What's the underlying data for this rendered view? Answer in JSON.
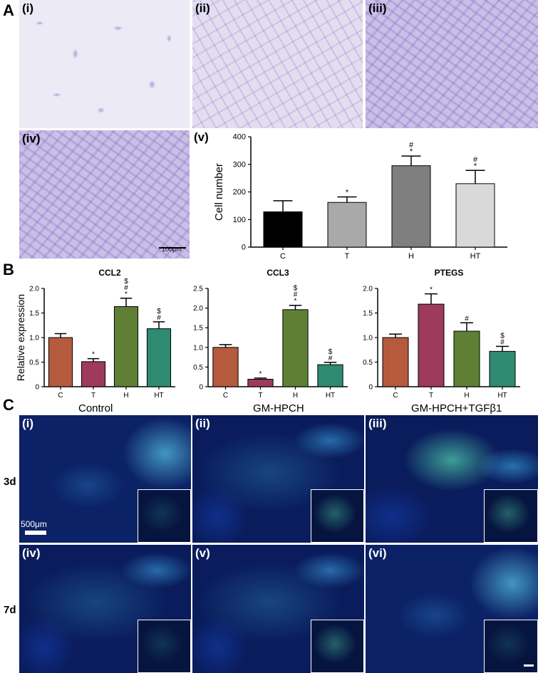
{
  "panel_A": {
    "letter": "A",
    "labels": [
      "(i)",
      "(ii)",
      "(iii)",
      "(iv)",
      "(v)"
    ],
    "scale_bar": "100μm"
  },
  "panel_B": {
    "letter": "B"
  },
  "panel_C": {
    "letter": "C",
    "group_titles": [
      "Control",
      "GM-HPCH",
      "GM-HPCH+TGFβ1"
    ],
    "row_labels": [
      "3d",
      "7d"
    ],
    "labels": [
      "(i)",
      "(ii)",
      "(iii)",
      "(iv)",
      "(v)",
      "(vi)"
    ],
    "scale_bar": "500μm"
  },
  "chart_data": [
    {
      "type": "bar",
      "title": "",
      "xlabel": "",
      "ylabel": "Cell number",
      "categories": [
        "C",
        "T",
        "H",
        "HT"
      ],
      "values": [
        128,
        162,
        295,
        230
      ],
      "errors": [
        40,
        20,
        35,
        48
      ],
      "ylim": [
        0,
        400
      ],
      "yticks": [
        "0",
        "100",
        "200",
        "300",
        "400"
      ],
      "colors": [
        "#000000",
        "#a9a9a9",
        "#7f7f7f",
        "#d9d9d9"
      ],
      "annotations": [
        [],
        [
          "*"
        ],
        [
          "#",
          "*"
        ],
        [
          "#",
          "*"
        ]
      ]
    },
    {
      "type": "bar",
      "title": "CCL2",
      "ylabel": "Relative expression",
      "categories": [
        "C",
        "T",
        "H",
        "HT"
      ],
      "values": [
        1.0,
        0.51,
        1.63,
        1.18
      ],
      "errors": [
        0.08,
        0.06,
        0.17,
        0.14
      ],
      "ylim": [
        0,
        2.0
      ],
      "yticks": [
        "0",
        "0.5",
        "1.0",
        "1.5",
        "2.0"
      ],
      "colors": [
        "#b65a3d",
        "#9e3a5c",
        "#5f7f34",
        "#2f8a72"
      ],
      "annotations": [
        [],
        [
          "*"
        ],
        [
          "$",
          "#",
          "*"
        ],
        [
          "$",
          "#"
        ]
      ]
    },
    {
      "type": "bar",
      "title": "CCL3",
      "ylabel": "",
      "categories": [
        "C",
        "T",
        "H",
        "HT"
      ],
      "values": [
        1.0,
        0.19,
        1.96,
        0.56
      ],
      "errors": [
        0.07,
        0.03,
        0.11,
        0.06
      ],
      "ylim": [
        0,
        2.5
      ],
      "yticks": [
        "0",
        "0.5",
        "1.0",
        "1.5",
        "2.0",
        "2.5"
      ],
      "colors": [
        "#b65a3d",
        "#9e3a5c",
        "#5f7f34",
        "#2f8a72"
      ],
      "annotations": [
        [],
        [
          "*"
        ],
        [
          "$",
          "#",
          "*"
        ],
        [
          "$",
          "#"
        ]
      ]
    },
    {
      "type": "bar",
      "title": "PTEGS",
      "ylabel": "",
      "categories": [
        "C",
        "T",
        "H",
        "HT"
      ],
      "values": [
        1.0,
        1.68,
        1.13,
        0.72
      ],
      "errors": [
        0.07,
        0.21,
        0.17,
        0.1
      ],
      "ylim": [
        0,
        2.0
      ],
      "yticks": [
        "0",
        "0.5",
        "1.0",
        "1.5",
        "2.0"
      ],
      "colors": [
        "#b65a3d",
        "#9e3a5c",
        "#5f7f34",
        "#2f8a72"
      ],
      "annotations": [
        [],
        [
          "*"
        ],
        [
          "#"
        ],
        [
          "$",
          "#"
        ]
      ]
    }
  ]
}
